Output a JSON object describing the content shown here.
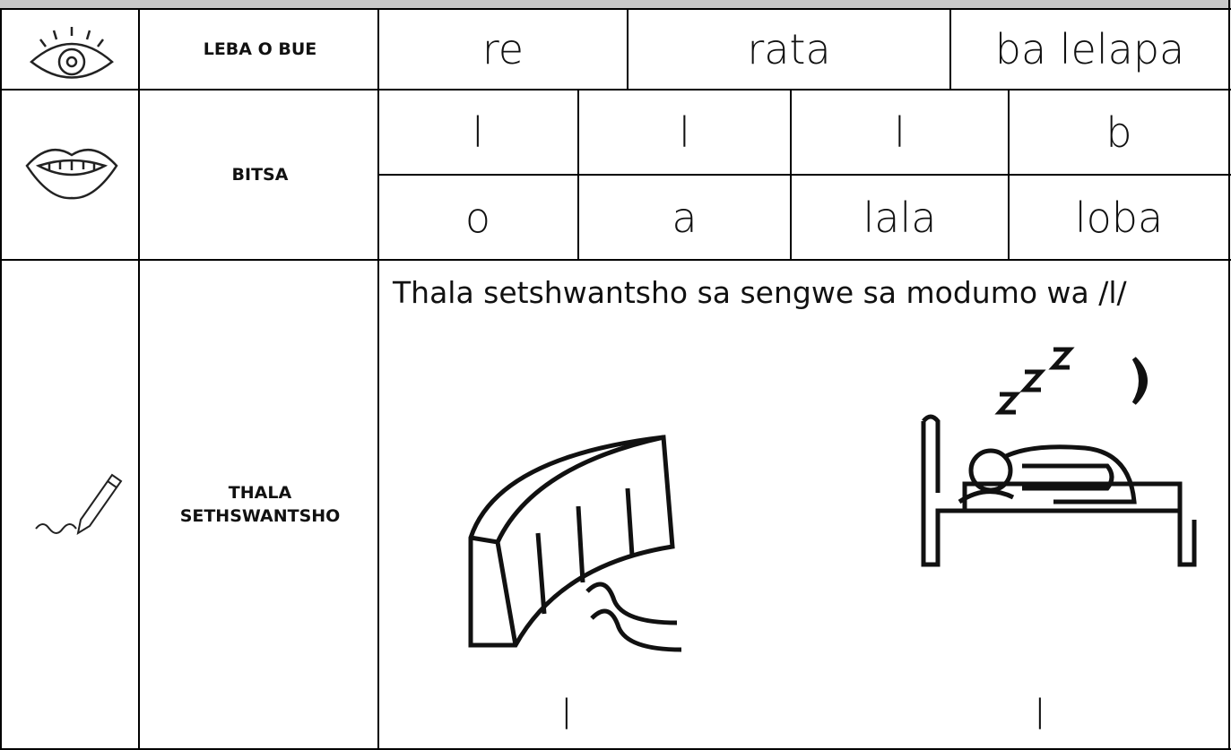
{
  "rows": [
    {
      "label": "LEBA O BUE",
      "cells": [
        "re",
        "rata",
        "ba lelapa"
      ]
    },
    {
      "label": "BITSA",
      "cells_top": [
        "l",
        "l",
        "l",
        "b"
      ],
      "cells_bottom": [
        "o",
        "a",
        "lala",
        "loba"
      ]
    },
    {
      "label": "THALA SETHSWANTSHO",
      "instruction": "Thala setshwantsho sa sengwe sa modumo wa /l/",
      "answers": [
        "l",
        "l"
      ]
    }
  ]
}
